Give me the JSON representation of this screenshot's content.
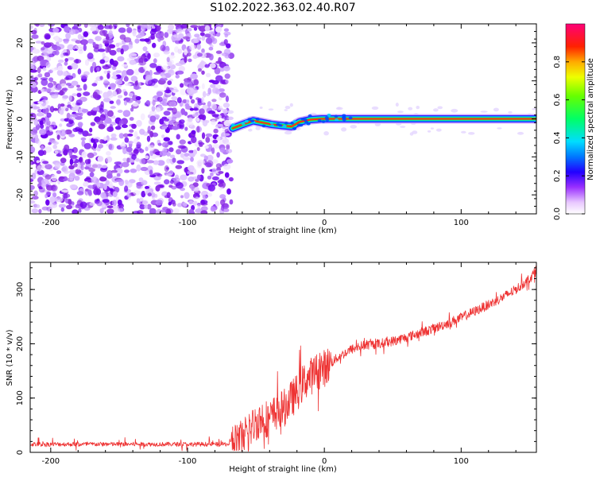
{
  "title": "S102.2022.363.02.40.R07",
  "chart_data": [
    {
      "type": "heatmap",
      "xlabel": "Height of straight line (km)",
      "ylabel": "Frequency (Hz)",
      "xlim": [
        -215,
        155
      ],
      "ylim": [
        -25,
        25
      ],
      "xticks": [
        -200,
        -100,
        0,
        100
      ],
      "xtick_labels": [
        "-200",
        "-100",
        "0",
        "100"
      ],
      "yticks": [
        -20,
        -10,
        0,
        10,
        20
      ],
      "ytick_labels": [
        "-20",
        "-10",
        "0",
        "10",
        "20"
      ],
      "noise_region_x": [
        -215,
        -68
      ],
      "signal_track": [
        {
          "x": -67,
          "f": -2.5
        },
        {
          "x": -60,
          "f": -1.5
        },
        {
          "x": -52,
          "f": -0.5
        },
        {
          "x": -45,
          "f": -1.0
        },
        {
          "x": -38,
          "f": -1.5
        },
        {
          "x": -30,
          "f": -1.8
        },
        {
          "x": -24,
          "f": -2.0
        },
        {
          "x": -18,
          "f": -0.8
        },
        {
          "x": -10,
          "f": -0.2
        },
        {
          "x": -2,
          "f": 0.0
        },
        {
          "x": 10,
          "f": 0.0
        },
        {
          "x": 20,
          "f": 0.0
        },
        {
          "x": 155,
          "f": 0.0
        }
      ],
      "colorbar": {
        "label": "Normalized spectral amplitude",
        "range": [
          0,
          1
        ],
        "ticks": [
          0,
          0.2,
          0.4,
          0.6,
          0.8
        ],
        "tick_labels": [
          "0.0",
          "0.2",
          "0.4",
          "0.6",
          "0.8"
        ]
      }
    },
    {
      "type": "line",
      "xlabel": "Height of straight line (km)",
      "ylabel": "SNR (10 * v/v)",
      "xlim": [
        -215,
        155
      ],
      "ylim": [
        0,
        350
      ],
      "xticks": [
        -200,
        -100,
        0,
        100
      ],
      "xtick_labels": [
        "-200",
        "-100",
        "0",
        "100"
      ],
      "yticks": [
        0,
        100,
        200,
        300
      ],
      "ytick_labels": [
        "0",
        "100",
        "200",
        "300"
      ],
      "series": [
        {
          "name": "SNR",
          "color": "#ee3333",
          "x": [
            -215,
            -150,
            -100,
            -70,
            -55,
            -50,
            -45,
            -40,
            -35,
            -30,
            -25,
            -20,
            -15,
            -10,
            -5,
            0,
            10,
            20,
            30,
            40,
            50,
            60,
            70,
            80,
            90,
            100,
            110,
            120,
            130,
            140,
            150,
            155
          ],
          "y": [
            15,
            15,
            15,
            15,
            40,
            55,
            65,
            60,
            75,
            80,
            95,
            110,
            130,
            140,
            150,
            155,
            175,
            190,
            198,
            200,
            205,
            212,
            220,
            228,
            238,
            248,
            260,
            272,
            285,
            300,
            320,
            335
          ]
        }
      ]
    }
  ]
}
